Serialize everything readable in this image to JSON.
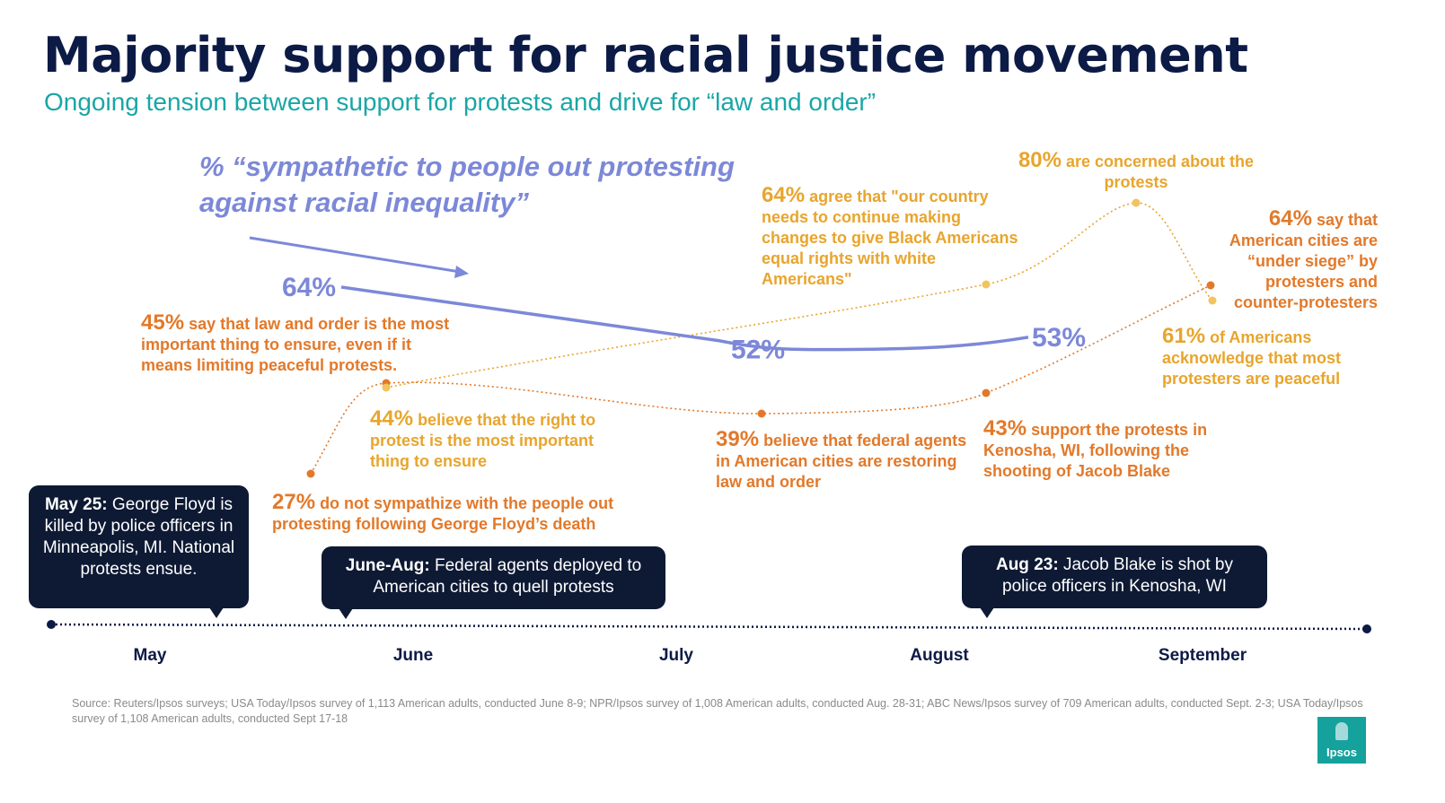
{
  "title": "Majority support for racial justice movement",
  "subtitle": "Ongoing tension between support for protests and drive for “law and order”",
  "colors": {
    "navy": "#0c1a46",
    "teal": "#1aa6a6",
    "series": "#7c88d8",
    "orange": "#e2792a",
    "gold": "#e8a52d",
    "callout_bg": "#0e1a34"
  },
  "chart_data": {
    "type": "line",
    "x_axis_type": "timeline",
    "categories": [
      "May",
      "June",
      "July",
      "August",
      "September"
    ],
    "series": [
      {
        "name": "% “sympathetic to people out protesting against racial inequality”",
        "points": [
          {
            "x": "June",
            "y": 64,
            "label": "64%"
          },
          {
            "x": "July",
            "y": 52,
            "label": "52%"
          },
          {
            "x": "August",
            "y": 53,
            "label": "53%"
          }
        ]
      }
    ],
    "annotation_tracks": [
      {
        "name": "law-and-order",
        "color": "#e2792a",
        "values": [
          27,
          45,
          39,
          43,
          64
        ]
      },
      {
        "name": "protest",
        "color": "#e8a52d",
        "values": [
          44,
          64,
          80,
          61
        ]
      }
    ]
  },
  "series_label": "% “sympathetic to people out protesting against racial inequality”",
  "annotations": {
    "a27": {
      "pct": "27%",
      "text": "do not sympathize with the people out protesting following George Floyd’s death"
    },
    "a45": {
      "pct": "45%",
      "text": "say that law and order is the most important thing to ensure, even if it means limiting peaceful protests."
    },
    "a44": {
      "pct": "44%",
      "text": "believe that the right to protest is the most important thing to ensure"
    },
    "a64a": {
      "pct": "64%",
      "text": "agree that \"our country needs to continue making changes to give Black Americans equal rights with white Americans\""
    },
    "a39": {
      "pct": "39%",
      "text": "believe that federal agents in American cities are restoring law and order"
    },
    "a80": {
      "pct": "80%",
      "text": "are concerned about the protests"
    },
    "a43": {
      "pct": "43%",
      "text": "support the protests in Kenosha, WI, following the shooting of Jacob Blake"
    },
    "a64b": {
      "pct": "64%",
      "text": "say that American cities are “under siege” by protesters and counter-protesters"
    },
    "a61": {
      "pct": "61%",
      "text": "of Americans acknowledge that most protesters are peaceful"
    }
  },
  "events": [
    {
      "bold": "May 25:",
      "text": "George Floyd is killed by police officers in Minneapolis, MI. National protests ensue."
    },
    {
      "bold": "June-Aug:",
      "text": "Federal agents deployed to American cities to quell protests"
    },
    {
      "bold": "Aug 23:",
      "text": "Jacob Blake is shot by police officers in Kenosha, WI"
    }
  ],
  "months": [
    "May",
    "June",
    "July",
    "August",
    "September"
  ],
  "source": "Source: Reuters/Ipsos surveys; USA Today/Ipsos survey of 1,113 American adults, conducted June 8-9; NPR/Ipsos survey of 1,008 American adults, conducted Aug. 28-31; ABC News/Ipsos survey of 709 American adults, conducted Sept. 2-3; USA Today/Ipsos survey of 1,108 American adults, conducted Sept 17-18",
  "logo": {
    "text": "Ipsos"
  }
}
